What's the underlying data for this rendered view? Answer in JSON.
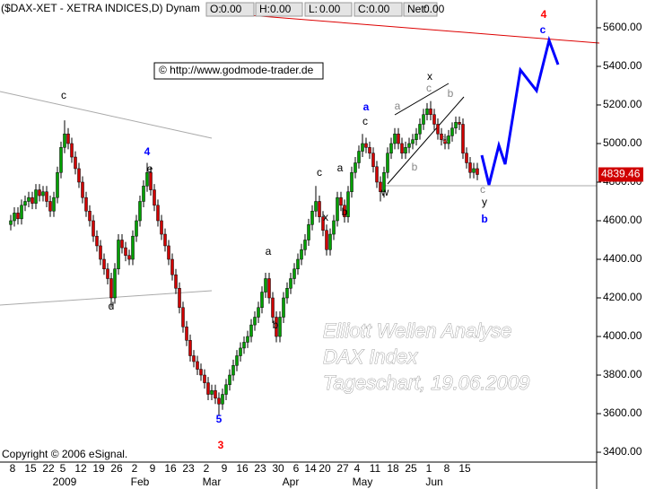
{
  "chart_data": {
    "type": "candlestick",
    "title": "($DAX-XET - XETRA INDICES,D) Dynam",
    "header_fields": [
      {
        "label": "O:",
        "value": "0.00"
      },
      {
        "label": "H:",
        "value": "0.00"
      },
      {
        "label": "L:",
        "value": "0.00"
      },
      {
        "label": "C:",
        "value": "0.00"
      },
      {
        "label": "Net:",
        "value": "0.00"
      }
    ],
    "link": "© http://www.godmode-trader.de",
    "watermark": [
      "Elliott Wellen Analyse",
      "DAX Index",
      "Tageschart, 19.06.2009"
    ],
    "copyright": "Copyright © 2006 eSignal.",
    "up_color": "#00a000",
    "down_color": "#d00000",
    "ylim": [
      3349,
      5744
    ],
    "yticks": [
      {
        "value": 3400,
        "label": "3400.00"
      },
      {
        "value": 3600,
        "label": "3600.00"
      },
      {
        "value": 3800,
        "label": "3800.00"
      },
      {
        "value": 4000,
        "label": "4000.00"
      },
      {
        "value": 4200,
        "label": "4200.00"
      },
      {
        "value": 4400,
        "label": "4400.00"
      },
      {
        "value": 4600,
        "label": "4600.00"
      },
      {
        "value": 4800,
        "label": "4800.00"
      },
      {
        "value": 5000,
        "label": "5000.00"
      },
      {
        "value": 5200,
        "label": "5200.00"
      },
      {
        "value": 5400,
        "label": "5400.00"
      },
      {
        "value": 5600,
        "label": "5600.00"
      }
    ],
    "categories": [
      "8",
      null,
      null,
      null,
      null,
      "15",
      null,
      null,
      null,
      null,
      "22",
      null,
      null,
      null,
      "5",
      null,
      null,
      null,
      null,
      "12",
      null,
      null,
      null,
      null,
      "19",
      null,
      null,
      null,
      null,
      "26",
      null,
      null,
      null,
      null,
      "2",
      null,
      null,
      null,
      null,
      "9",
      null,
      null,
      null,
      null,
      "16",
      null,
      null,
      null,
      null,
      "23",
      null,
      null,
      null,
      null,
      "2",
      null,
      null,
      null,
      null,
      "9",
      null,
      null,
      null,
      null,
      "16",
      null,
      null,
      null,
      null,
      "23",
      null,
      null,
      null,
      null,
      "30",
      null,
      null,
      null,
      null,
      "6",
      null,
      null,
      null,
      "14",
      null,
      null,
      null,
      "20",
      null,
      null,
      null,
      null,
      "27",
      null,
      null,
      null,
      "4",
      null,
      null,
      null,
      null,
      "11",
      null,
      null,
      null,
      null,
      "18",
      null,
      null,
      null,
      null,
      "25",
      null,
      null,
      null,
      null,
      "1",
      null,
      null,
      null,
      null,
      "8",
      null,
      null,
      null,
      null,
      "15",
      null,
      null,
      null,
      null
    ],
    "month_labels": [
      null,
      null,
      null,
      null,
      null,
      null,
      null,
      null,
      null,
      null,
      null,
      null,
      null,
      null,
      null,
      "2009",
      null,
      null,
      null,
      null,
      null,
      null,
      null,
      null,
      null,
      null,
      null,
      null,
      null,
      null,
      null,
      null,
      null,
      null,
      null,
      null,
      "Feb",
      null,
      null,
      null,
      null,
      null,
      null,
      null,
      null,
      null,
      null,
      null,
      null,
      null,
      null,
      null,
      null,
      null,
      null,
      null,
      "Mar",
      null,
      null,
      null,
      null,
      null,
      null,
      null,
      null,
      null,
      null,
      null,
      null,
      null,
      null,
      null,
      null,
      null,
      null,
      null,
      null,
      null,
      "Apr",
      null,
      null,
      null,
      null,
      null,
      null,
      null,
      null,
      null,
      null,
      null,
      null,
      null,
      null,
      null,
      null,
      null,
      null,
      null,
      "May",
      null,
      null,
      null,
      null,
      null,
      null,
      null,
      null,
      null,
      null,
      null,
      null,
      null,
      null,
      null,
      null,
      null,
      null,
      null,
      "Jun",
      null,
      null,
      null,
      null,
      null,
      null,
      null,
      null,
      null,
      null,
      null
    ],
    "candles": [
      [
        4580,
        4630,
        4550,
        4600
      ],
      [
        4600,
        4670,
        4570,
        4640
      ],
      [
        4640,
        4670,
        4580,
        4610
      ],
      [
        4610,
        4710,
        4580,
        4680
      ],
      [
        4680,
        4730,
        4650,
        4700
      ],
      [
        4700,
        4750,
        4670,
        4720
      ],
      [
        4720,
        4750,
        4660,
        4690
      ],
      [
        4690,
        4790,
        4660,
        4760
      ],
      [
        4760,
        4790,
        4700,
        4730
      ],
      [
        4730,
        4780,
        4700,
        4750
      ],
      [
        4750,
        4780,
        4670,
        4700
      ],
      [
        4700,
        4730,
        4620,
        4650
      ],
      [
        4650,
        4750,
        4620,
        4720
      ],
      [
        4720,
        4880,
        4690,
        4850
      ],
      [
        4850,
        5010,
        4820,
        4980
      ],
      [
        4980,
        5120,
        4950,
        5050
      ],
      [
        5050,
        5080,
        4970,
        5000
      ],
      [
        5000,
        5030,
        4900,
        4930
      ],
      [
        4930,
        4960,
        4840,
        4870
      ],
      [
        4870,
        4900,
        4770,
        4800
      ],
      [
        4800,
        4830,
        4690,
        4720
      ],
      [
        4720,
        4750,
        4620,
        4650
      ],
      [
        4650,
        4680,
        4570,
        4600
      ],
      [
        4600,
        4630,
        4490,
        4520
      ],
      [
        4520,
        4550,
        4440,
        4470
      ],
      [
        4470,
        4500,
        4370,
        4400
      ],
      [
        4400,
        4430,
        4320,
        4350
      ],
      [
        4350,
        4380,
        4270,
        4300
      ],
      [
        4300,
        4330,
        4150,
        4200
      ],
      [
        4200,
        4380,
        4170,
        4350
      ],
      [
        4350,
        4530,
        4320,
        4500
      ],
      [
        4500,
        4530,
        4430,
        4460
      ],
      [
        4460,
        4490,
        4390,
        4420
      ],
      [
        4420,
        4450,
        4370,
        4400
      ],
      [
        4400,
        4550,
        4370,
        4520
      ],
      [
        4520,
        4630,
        4490,
        4600
      ],
      [
        4600,
        4730,
        4570,
        4700
      ],
      [
        4700,
        4810,
        4670,
        4780
      ],
      [
        4780,
        4900,
        4750,
        4850
      ],
      [
        4850,
        4880,
        4730,
        4760
      ],
      [
        4760,
        4790,
        4650,
        4680
      ],
      [
        4680,
        4710,
        4570,
        4600
      ],
      [
        4600,
        4630,
        4500,
        4530
      ],
      [
        4530,
        4560,
        4440,
        4470
      ],
      [
        4470,
        4500,
        4370,
        4400
      ],
      [
        4400,
        4430,
        4290,
        4320
      ],
      [
        4320,
        4350,
        4220,
        4250
      ],
      [
        4250,
        4280,
        4120,
        4150
      ],
      [
        4150,
        4180,
        4020,
        4050
      ],
      [
        4050,
        4080,
        3950,
        3980
      ],
      [
        3980,
        4010,
        3870,
        3900
      ],
      [
        3900,
        3930,
        3840,
        3870
      ],
      [
        3870,
        3900,
        3800,
        3830
      ],
      [
        3830,
        3860,
        3770,
        3800
      ],
      [
        3800,
        3830,
        3730,
        3760
      ],
      [
        3760,
        3790,
        3670,
        3700
      ],
      [
        3700,
        3750,
        3670,
        3720
      ],
      [
        3720,
        3750,
        3650,
        3680
      ],
      [
        3680,
        3710,
        3590,
        3650
      ],
      [
        3650,
        3730,
        3620,
        3700
      ],
      [
        3700,
        3780,
        3670,
        3750
      ],
      [
        3750,
        3830,
        3720,
        3800
      ],
      [
        3800,
        3880,
        3770,
        3850
      ],
      [
        3850,
        3930,
        3820,
        3900
      ],
      [
        3900,
        3970,
        3870,
        3940
      ],
      [
        3940,
        4000,
        3910,
        3970
      ],
      [
        3970,
        4030,
        3940,
        4000
      ],
      [
        4000,
        4090,
        3970,
        4060
      ],
      [
        4060,
        4130,
        4030,
        4100
      ],
      [
        4100,
        4180,
        4070,
        4150
      ],
      [
        4150,
        4260,
        4120,
        4230
      ],
      [
        4230,
        4330,
        4200,
        4300
      ],
      [
        4300,
        4330,
        4170,
        4200
      ],
      [
        4200,
        4230,
        4070,
        4100
      ],
      [
        4100,
        4130,
        3970,
        4000
      ],
      [
        4000,
        4130,
        3970,
        4100
      ],
      [
        4100,
        4230,
        4070,
        4200
      ],
      [
        4200,
        4280,
        4170,
        4250
      ],
      [
        4250,
        4330,
        4220,
        4300
      ],
      [
        4300,
        4380,
        4270,
        4350
      ],
      [
        4350,
        4430,
        4320,
        4400
      ],
      [
        4400,
        4480,
        4370,
        4450
      ],
      [
        4450,
        4530,
        4420,
        4500
      ],
      [
        4500,
        4610,
        4470,
        4580
      ],
      [
        4580,
        4680,
        4550,
        4650
      ],
      [
        4650,
        4780,
        4620,
        4700
      ],
      [
        4700,
        4730,
        4590,
        4620
      ],
      [
        4620,
        4650,
        4520,
        4550
      ],
      [
        4550,
        4580,
        4420,
        4450
      ],
      [
        4450,
        4560,
        4420,
        4530
      ],
      [
        4530,
        4630,
        4500,
        4600
      ],
      [
        4600,
        4750,
        4570,
        4720
      ],
      [
        4720,
        4750,
        4650,
        4680
      ],
      [
        4680,
        4710,
        4590,
        4620
      ],
      [
        4620,
        4780,
        4590,
        4750
      ],
      [
        4750,
        4880,
        4720,
        4850
      ],
      [
        4850,
        4930,
        4820,
        4900
      ],
      [
        4900,
        4990,
        4870,
        4960
      ],
      [
        4960,
        5050,
        4930,
        5000
      ],
      [
        5000,
        5030,
        4950,
        4980
      ],
      [
        4980,
        5010,
        4920,
        4950
      ],
      [
        4950,
        4980,
        4850,
        4880
      ],
      [
        4880,
        4910,
        4770,
        4800
      ],
      [
        4800,
        4830,
        4700,
        4750
      ],
      [
        4750,
        4880,
        4720,
        4850
      ],
      [
        4850,
        4980,
        4820,
        4950
      ],
      [
        4950,
        5030,
        4920,
        5000
      ],
      [
        5000,
        5080,
        4970,
        5050
      ],
      [
        5050,
        5080,
        4970,
        5000
      ],
      [
        5000,
        5030,
        4920,
        4950
      ],
      [
        4950,
        5010,
        4920,
        4980
      ],
      [
        4980,
        5030,
        4950,
        5000
      ],
      [
        5000,
        5050,
        4970,
        5020
      ],
      [
        5020,
        5080,
        4990,
        5050
      ],
      [
        5050,
        5130,
        5020,
        5100
      ],
      [
        5100,
        5180,
        5070,
        5150
      ],
      [
        5150,
        5210,
        5120,
        5180
      ],
      [
        5180,
        5220,
        5120,
        5150
      ],
      [
        5150,
        5180,
        5070,
        5100
      ],
      [
        5100,
        5130,
        5020,
        5050
      ],
      [
        5050,
        5080,
        4990,
        5020
      ],
      [
        5020,
        5050,
        4970,
        5000
      ],
      [
        5000,
        5070,
        4970,
        5040
      ],
      [
        5040,
        5110,
        5010,
        5080
      ],
      [
        5080,
        5140,
        5050,
        5110
      ],
      [
        5110,
        5140,
        5070,
        5100
      ],
      [
        5100,
        5130,
        4920,
        4950
      ],
      [
        4950,
        4980,
        4870,
        4900
      ],
      [
        4900,
        4930,
        4820,
        4850
      ],
      [
        4850,
        4900,
        4820,
        4870
      ],
      [
        4870,
        4900,
        4810,
        4839.46
      ]
    ],
    "annotations": [
      {
        "text": "c",
        "color": "#000000"
      },
      {
        "text": "4",
        "color": "#0000ff"
      },
      {
        "text": "e",
        "color": "#000000"
      },
      {
        "text": "d",
        "color": "#000000"
      },
      {
        "text": "5",
        "color": "#0000ff"
      },
      {
        "text": "3",
        "color": "#ff0000"
      },
      {
        "text": "a",
        "color": "#000000"
      },
      {
        "text": "b",
        "color": "#000000"
      },
      {
        "text": "c",
        "color": "#000000"
      },
      {
        "text": "x",
        "color": "#000000"
      },
      {
        "text": "a",
        "color": "#000000"
      },
      {
        "text": "b",
        "color": "#000000"
      },
      {
        "text": "a",
        "color": "#0000ff"
      },
      {
        "text": "c",
        "color": "#000000"
      },
      {
        "text": "w",
        "color": "#000000"
      },
      {
        "text": "x",
        "color": "#000000"
      },
      {
        "text": "a",
        "color": "#888888"
      },
      {
        "text": "b",
        "color": "#888888"
      },
      {
        "text": "c",
        "color": "#888888"
      },
      {
        "text": "b",
        "color": "#888888"
      },
      {
        "text": "a",
        "color": "#888888"
      },
      {
        "text": "c",
        "color": "#888888"
      },
      {
        "text": "y",
        "color": "#000000"
      },
      {
        "text": "b",
        "color": "#0000ff"
      },
      {
        "text": "4",
        "color": "#ff0000"
      },
      {
        "text": "c",
        "color": "#0000ff"
      }
    ]
  }
}
